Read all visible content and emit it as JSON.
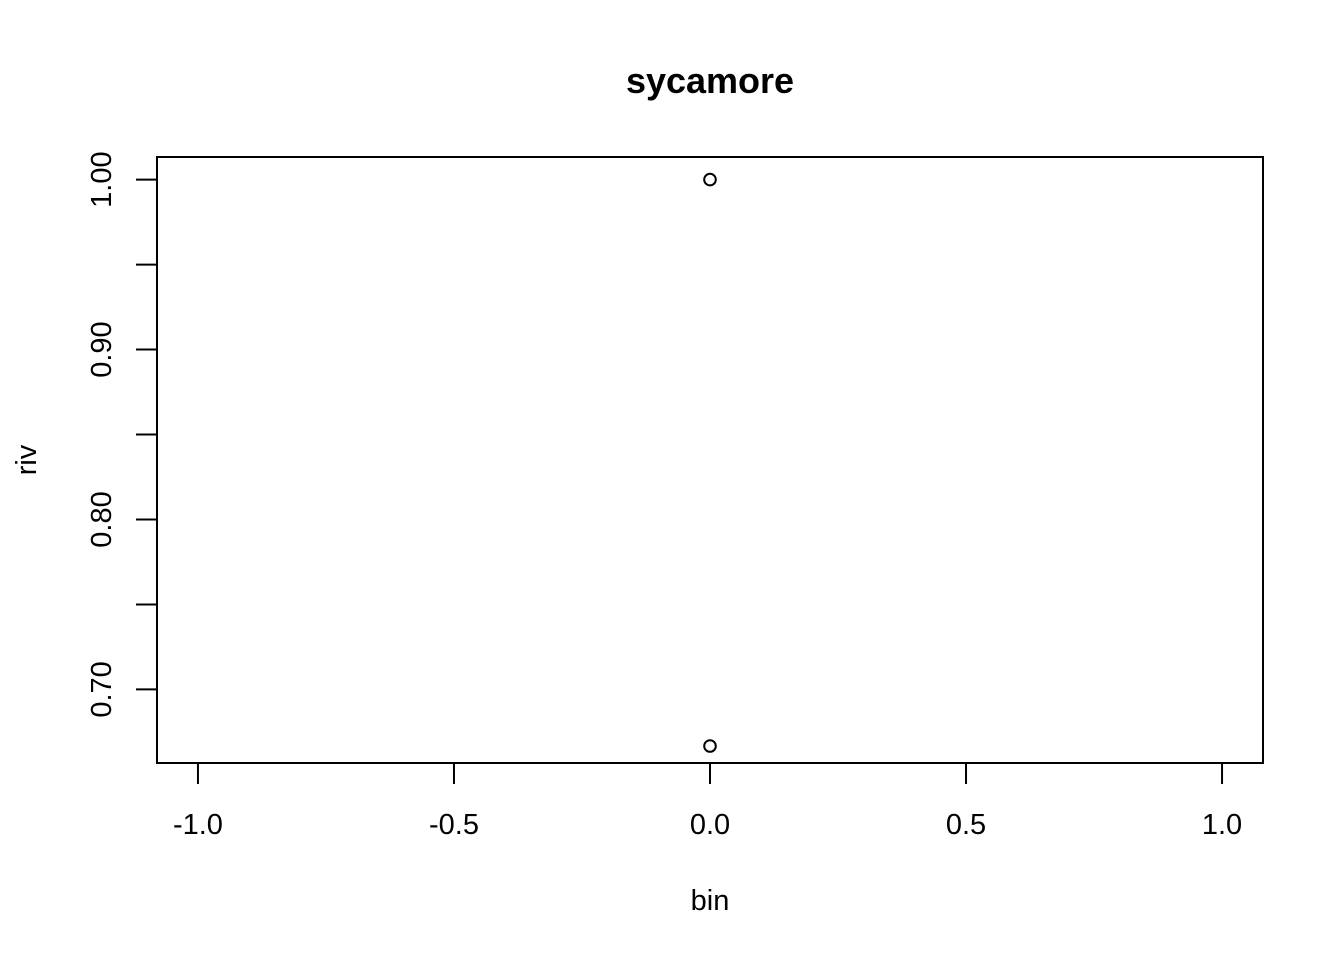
{
  "chart_data": {
    "type": "scatter",
    "title": "sycamore",
    "xlabel": "bin",
    "ylabel": "riv",
    "xlim": [
      -1.08,
      1.08
    ],
    "ylim": [
      0.6567,
      1.0133
    ],
    "x_ticks": [
      -1.0,
      -0.5,
      0.0,
      0.5,
      1.0
    ],
    "x_tick_labels": [
      "-1.0",
      "-0.5",
      "0.0",
      "0.5",
      "1.0"
    ],
    "y_ticks": [
      0.7,
      0.75,
      0.8,
      0.85,
      0.9,
      0.95,
      1.0
    ],
    "y_tick_labels": [
      "0.70",
      "",
      "0.80",
      "",
      "0.90",
      "",
      "1.00"
    ],
    "grid": false,
    "marker": "open-circle",
    "series": [
      {
        "points": [
          {
            "x": 0.0,
            "y": 1.0
          },
          {
            "x": 0.0,
            "y": 0.6667
          }
        ]
      }
    ]
  },
  "colors": {
    "background": "#ffffff",
    "foreground": "#000000"
  }
}
